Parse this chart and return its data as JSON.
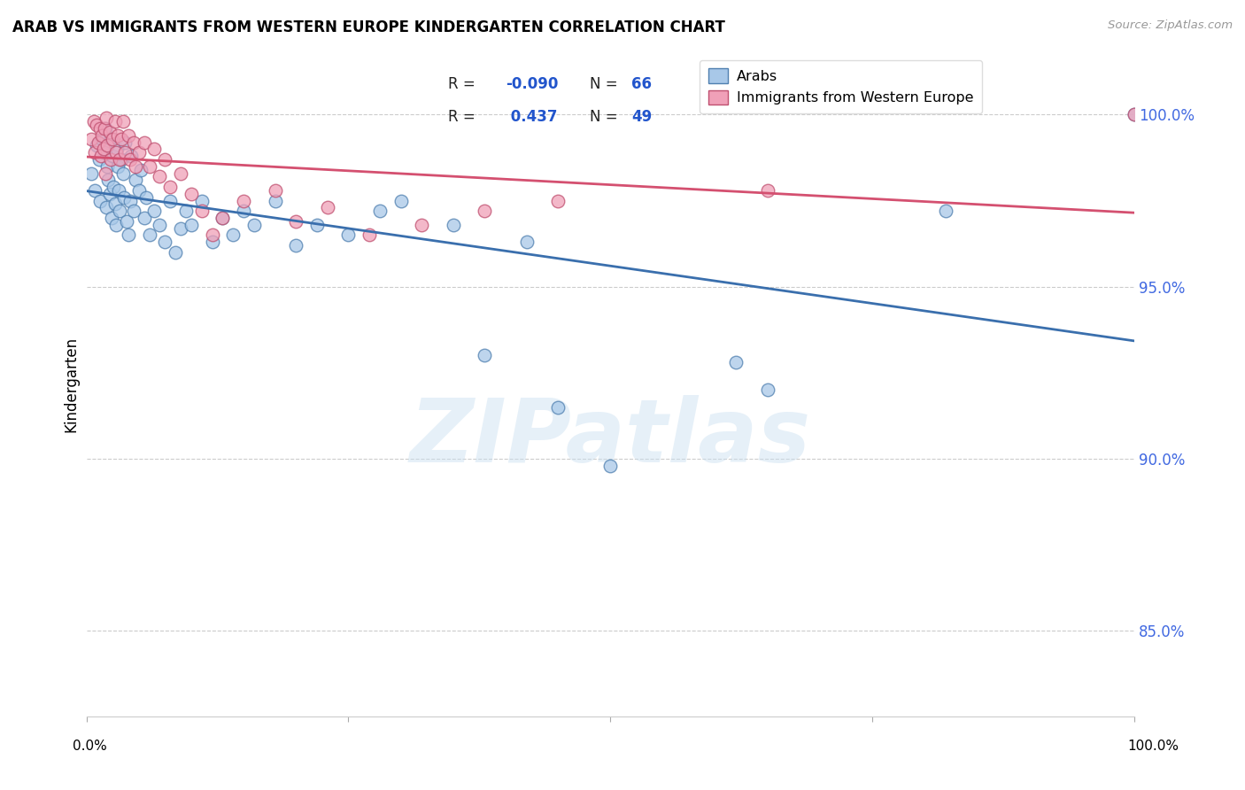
{
  "title": "ARAB VS IMMIGRANTS FROM WESTERN EUROPE KINDERGARTEN CORRELATION CHART",
  "source": "Source: ZipAtlas.com",
  "ylabel": "Kindergarten",
  "ytick_labels": [
    "85.0%",
    "90.0%",
    "95.0%",
    "100.0%"
  ],
  "ytick_values": [
    0.85,
    0.9,
    0.95,
    1.0
  ],
  "xlim": [
    0.0,
    1.0
  ],
  "ylim": [
    0.825,
    1.018
  ],
  "arab_color": "#a8c8e8",
  "arab_edge_color": "#5080b0",
  "immig_color": "#f0a0b8",
  "immig_edge_color": "#c05070",
  "arab_line_color": "#3a6fad",
  "immig_line_color": "#d45070",
  "legend_label_arab": "Arabs",
  "legend_label_immig": "Immigrants from Western Europe",
  "watermark": "ZIPatlas",
  "arab_x": [
    0.005,
    0.008,
    0.01,
    0.012,
    0.013,
    0.015,
    0.017,
    0.018,
    0.019,
    0.02,
    0.021,
    0.022,
    0.023,
    0.024,
    0.025,
    0.026,
    0.027,
    0.028,
    0.029,
    0.03,
    0.031,
    0.032,
    0.033,
    0.035,
    0.036,
    0.037,
    0.038,
    0.04,
    0.042,
    0.043,
    0.045,
    0.047,
    0.05,
    0.052,
    0.055,
    0.057,
    0.06,
    0.065,
    0.07,
    0.075,
    0.08,
    0.085,
    0.09,
    0.095,
    0.1,
    0.11,
    0.12,
    0.13,
    0.14,
    0.15,
    0.16,
    0.18,
    0.2,
    0.22,
    0.25,
    0.28,
    0.3,
    0.35,
    0.38,
    0.42,
    0.45,
    0.5,
    0.62,
    0.65,
    0.82,
    1.0
  ],
  "arab_y": [
    0.983,
    0.978,
    0.991,
    0.987,
    0.975,
    0.993,
    0.989,
    0.996,
    0.973,
    0.985,
    0.981,
    0.977,
    0.993,
    0.97,
    0.988,
    0.979,
    0.974,
    0.968,
    0.99,
    0.985,
    0.978,
    0.972,
    0.987,
    0.983,
    0.976,
    0.992,
    0.969,
    0.965,
    0.975,
    0.988,
    0.972,
    0.981,
    0.978,
    0.984,
    0.97,
    0.976,
    0.965,
    0.972,
    0.968,
    0.963,
    0.975,
    0.96,
    0.967,
    0.972,
    0.968,
    0.975,
    0.963,
    0.97,
    0.965,
    0.972,
    0.968,
    0.975,
    0.962,
    0.968,
    0.965,
    0.972,
    0.975,
    0.968,
    0.93,
    0.963,
    0.915,
    0.898,
    0.928,
    0.92,
    0.972,
    1.0
  ],
  "immig_x": [
    0.005,
    0.007,
    0.008,
    0.01,
    0.011,
    0.013,
    0.014,
    0.015,
    0.016,
    0.017,
    0.018,
    0.019,
    0.02,
    0.022,
    0.023,
    0.025,
    0.027,
    0.028,
    0.03,
    0.032,
    0.033,
    0.035,
    0.037,
    0.04,
    0.042,
    0.045,
    0.047,
    0.05,
    0.055,
    0.06,
    0.065,
    0.07,
    0.075,
    0.08,
    0.09,
    0.1,
    0.11,
    0.12,
    0.13,
    0.15,
    0.18,
    0.2,
    0.23,
    0.27,
    0.32,
    0.38,
    0.45,
    0.65,
    1.0
  ],
  "immig_y": [
    0.993,
    0.998,
    0.989,
    0.997,
    0.992,
    0.996,
    0.988,
    0.994,
    0.99,
    0.996,
    0.983,
    0.999,
    0.991,
    0.995,
    0.987,
    0.993,
    0.998,
    0.989,
    0.994,
    0.987,
    0.993,
    0.998,
    0.989,
    0.994,
    0.987,
    0.992,
    0.985,
    0.989,
    0.992,
    0.985,
    0.99,
    0.982,
    0.987,
    0.979,
    0.983,
    0.977,
    0.972,
    0.965,
    0.97,
    0.975,
    0.978,
    0.969,
    0.973,
    0.965,
    0.968,
    0.972,
    0.975,
    0.978,
    1.0
  ]
}
